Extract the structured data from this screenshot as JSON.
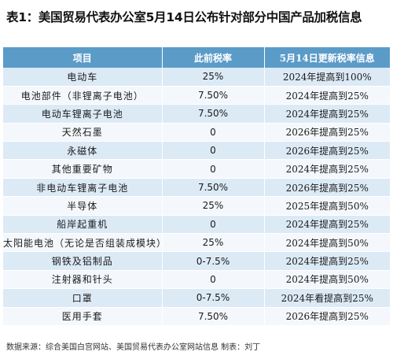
{
  "title": "表1：美国贸易代表办公室5月14日公布针对部分中国产品加税信息",
  "table": {
    "headers": [
      "项目",
      "此前税率",
      "5月14日更新税率信息"
    ],
    "rows": [
      {
        "product": "电动车",
        "prior": "25%",
        "update": "2024年提高到100%"
      },
      {
        "product": "电池部件（非锂离子电池）",
        "prior": "7.50%",
        "update": "2024年提高到25%"
      },
      {
        "product": "电动车锂离子电池",
        "prior": "7.50%",
        "update": "2024年提高到25%"
      },
      {
        "product": "天然石墨",
        "prior": "0",
        "update": "2026年提高到25%"
      },
      {
        "product": "永磁体",
        "prior": "0",
        "update": "2026年提高到25%"
      },
      {
        "product": "其他重要矿物",
        "prior": "0",
        "update": "2024年提高到25%"
      },
      {
        "product": "非电动车锂离子电池",
        "prior": "7.50%",
        "update": "2026年提高到25%"
      },
      {
        "product": "半导体",
        "prior": "25%",
        "update": "2025年提高到50%"
      },
      {
        "product": "船岸起重机",
        "prior": "0",
        "update": "2024年提高到25%"
      },
      {
        "product": "太阳能电池（无论是否组装成模块）",
        "prior": "25%",
        "update": "2024年提高到50%"
      },
      {
        "product": "钢铁及铝制品",
        "prior": "0-7.5%",
        "update": "2024年提高到25%"
      },
      {
        "product": "注射器和针头",
        "prior": "0",
        "update": "2024年提高到50%"
      },
      {
        "product": "口罩",
        "prior": "0-7.5%",
        "update": "2024年看提高到25%"
      },
      {
        "product": "医用手套",
        "prior": "7.50%",
        "update": "2026年提高到25%"
      }
    ]
  },
  "source": "数据来源：综合美国白宫网站、美国贸易代表办公室网站信息  制表：刘丁"
}
